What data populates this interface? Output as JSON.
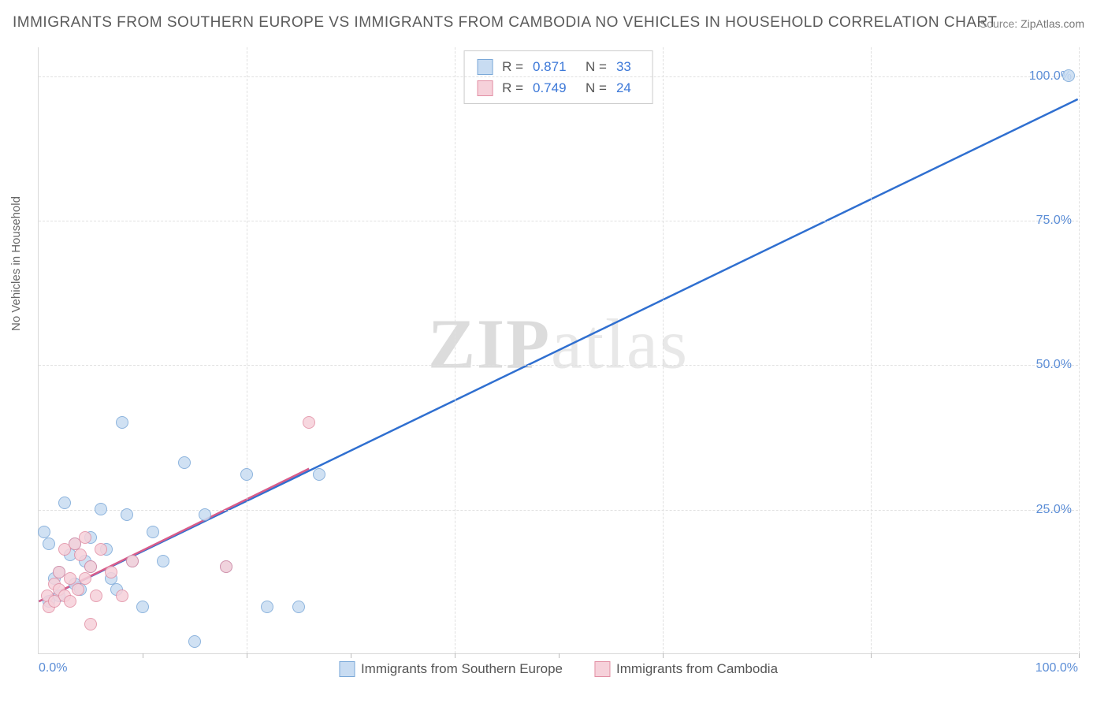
{
  "title": "IMMIGRANTS FROM SOUTHERN EUROPE VS IMMIGRANTS FROM CAMBODIA NO VEHICLES IN HOUSEHOLD CORRELATION CHART",
  "source_label": "Source:",
  "source_value": "ZipAtlas.com",
  "y_axis_label": "No Vehicles in Household",
  "watermark_a": "ZIP",
  "watermark_b": "atlas",
  "chart": {
    "type": "scatter",
    "xlim": [
      0,
      100
    ],
    "ylim": [
      0,
      105
    ],
    "x_ticks_labels": {
      "min": "0.0%",
      "max": "100.0%"
    },
    "y_ticks": [
      {
        "v": 25,
        "label": "25.0%"
      },
      {
        "v": 50,
        "label": "50.0%"
      },
      {
        "v": 75,
        "label": "75.0%"
      },
      {
        "v": 100,
        "label": "100.0%"
      }
    ],
    "x_gridlines": [
      20,
      40,
      60,
      80,
      100
    ],
    "x_tick_marks": [
      10,
      20,
      30,
      40,
      50,
      60,
      80,
      100
    ],
    "marker_radius": 8,
    "background_color": "#ffffff",
    "grid_color": "#e0e0e0",
    "axis_color": "#d9d9d9"
  },
  "series": [
    {
      "key": "southern_europe",
      "name": "Immigrants from Southern Europe",
      "R": "0.871",
      "N": "33",
      "color_fill": "#c8dcf2",
      "color_stroke": "#7aa8d8",
      "line_color": "#2f6fd0",
      "line": {
        "x1": 0,
        "y1": 9,
        "x2": 100,
        "y2": 96
      },
      "points": [
        {
          "x": 0.5,
          "y": 21
        },
        {
          "x": 1,
          "y": 19
        },
        {
          "x": 1,
          "y": 9
        },
        {
          "x": 1.5,
          "y": 13
        },
        {
          "x": 2,
          "y": 10
        },
        {
          "x": 2,
          "y": 14
        },
        {
          "x": 2.5,
          "y": 26
        },
        {
          "x": 3,
          "y": 17
        },
        {
          "x": 3.5,
          "y": 12
        },
        {
          "x": 3.5,
          "y": 19
        },
        {
          "x": 4,
          "y": 11
        },
        {
          "x": 4.5,
          "y": 16
        },
        {
          "x": 5,
          "y": 20
        },
        {
          "x": 5,
          "y": 15
        },
        {
          "x": 6,
          "y": 25
        },
        {
          "x": 6.5,
          "y": 18
        },
        {
          "x": 7,
          "y": 13
        },
        {
          "x": 7.5,
          "y": 11
        },
        {
          "x": 8,
          "y": 40
        },
        {
          "x": 8.5,
          "y": 24
        },
        {
          "x": 9,
          "y": 16
        },
        {
          "x": 10,
          "y": 8
        },
        {
          "x": 11,
          "y": 21
        },
        {
          "x": 12,
          "y": 16
        },
        {
          "x": 14,
          "y": 33
        },
        {
          "x": 15,
          "y": 2
        },
        {
          "x": 16,
          "y": 24
        },
        {
          "x": 18,
          "y": 15
        },
        {
          "x": 20,
          "y": 31
        },
        {
          "x": 22,
          "y": 8
        },
        {
          "x": 25,
          "y": 8
        },
        {
          "x": 27,
          "y": 31
        },
        {
          "x": 99,
          "y": 100
        }
      ]
    },
    {
      "key": "cambodia",
      "name": "Immigrants from Cambodia",
      "R": "0.749",
      "N": "24",
      "color_fill": "#f6d1da",
      "color_stroke": "#e28fa4",
      "line_color": "#d85c8a",
      "line": {
        "x1": 0,
        "y1": 9,
        "x2": 26,
        "y2": 32
      },
      "points": [
        {
          "x": 0.8,
          "y": 10
        },
        {
          "x": 1,
          "y": 8
        },
        {
          "x": 1.5,
          "y": 12
        },
        {
          "x": 1.5,
          "y": 9
        },
        {
          "x": 2,
          "y": 11
        },
        {
          "x": 2,
          "y": 14
        },
        {
          "x": 2.5,
          "y": 10
        },
        {
          "x": 2.5,
          "y": 18
        },
        {
          "x": 3,
          "y": 9
        },
        {
          "x": 3,
          "y": 13
        },
        {
          "x": 3.5,
          "y": 19
        },
        {
          "x": 3.8,
          "y": 11
        },
        {
          "x": 4,
          "y": 17
        },
        {
          "x": 4.5,
          "y": 20
        },
        {
          "x": 4.5,
          "y": 13
        },
        {
          "x": 5,
          "y": 5
        },
        {
          "x": 5,
          "y": 15
        },
        {
          "x": 5.5,
          "y": 10
        },
        {
          "x": 6,
          "y": 18
        },
        {
          "x": 7,
          "y": 14
        },
        {
          "x": 8,
          "y": 10
        },
        {
          "x": 9,
          "y": 16
        },
        {
          "x": 18,
          "y": 15
        },
        {
          "x": 26,
          "y": 40
        }
      ]
    }
  ]
}
